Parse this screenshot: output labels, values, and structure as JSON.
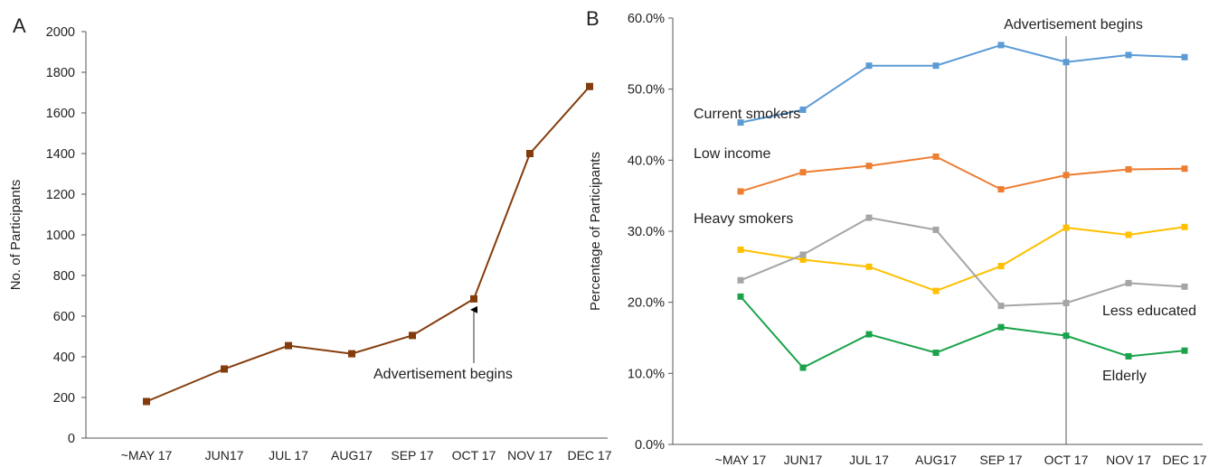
{
  "chart_data": [
    {
      "panel_label": "A",
      "type": "line",
      "categories": [
        "~MAY 17",
        "JUN17",
        "JUL 17",
        "AUG17",
        "SEP 17",
        "OCT 17",
        "NOV 17",
        "DEC 17"
      ],
      "series": [
        {
          "values": [
            180,
            340,
            455,
            415,
            505,
            685,
            1400,
            1730
          ],
          "color": "#843C0C"
        }
      ],
      "ylabel": "No. of Participants",
      "xlabel": "",
      "ylim": [
        0,
        2000
      ],
      "yticks": [
        0,
        200,
        400,
        600,
        800,
        1000,
        1200,
        1400,
        1600,
        1800,
        2000
      ],
      "ytick_labels": [
        "0",
        "200",
        "400",
        "600",
        "800",
        "1000",
        "1200",
        "1400",
        "1600",
        "1800",
        "2000"
      ],
      "grid": false,
      "legend": "none",
      "annotation": {
        "text": "Advertisement begins",
        "category": "OCT 17",
        "style": "arrow pointing up to the OCT 17 point"
      }
    },
    {
      "panel_label": "B",
      "type": "line",
      "categories": [
        "~MAY 17",
        "JUN17",
        "JUL 17",
        "AUG17",
        "SEP 17",
        "OCT 17",
        "NOV 17",
        "DEC 17"
      ],
      "series": [
        {
          "name": "Current smokers",
          "color": "#5B9BD5",
          "values": [
            45.3,
            47.1,
            53.3,
            53.3,
            56.2,
            53.8,
            54.8,
            54.5
          ]
        },
        {
          "name": "Low income",
          "color": "#ED7D31",
          "values": [
            35.6,
            38.3,
            39.2,
            40.5,
            35.9,
            37.9,
            38.7,
            38.8
          ]
        },
        {
          "name": "Heavy smokers",
          "color": "#FFC000",
          "values": [
            27.4,
            26.0,
            25.0,
            21.6,
            25.1,
            30.5,
            29.5,
            30.6
          ]
        },
        {
          "name": "Less educated",
          "color": "#A5A5A5",
          "values": [
            23.1,
            26.7,
            31.9,
            30.2,
            19.5,
            19.9,
            22.7,
            22.2
          ]
        },
        {
          "name": "Elderly",
          "color": "#1AA34A",
          "values": [
            20.8,
            10.8,
            15.5,
            12.9,
            16.5,
            15.3,
            12.4,
            13.2
          ]
        }
      ],
      "ylabel": "Percentage of Participants",
      "xlabel": "",
      "ylim": [
        0,
        60
      ],
      "yticks": [
        0,
        10,
        20,
        30,
        40,
        50,
        60
      ],
      "ytick_labels": [
        "0.0%",
        "10.0%",
        "20.0%",
        "30.0%",
        "40.0%",
        "50.0%",
        "60.0%"
      ],
      "grid": false,
      "legend": "inline labels",
      "annotation": {
        "text": "Advertisement begins",
        "category": "OCT 17",
        "style": "vertical line"
      }
    }
  ]
}
